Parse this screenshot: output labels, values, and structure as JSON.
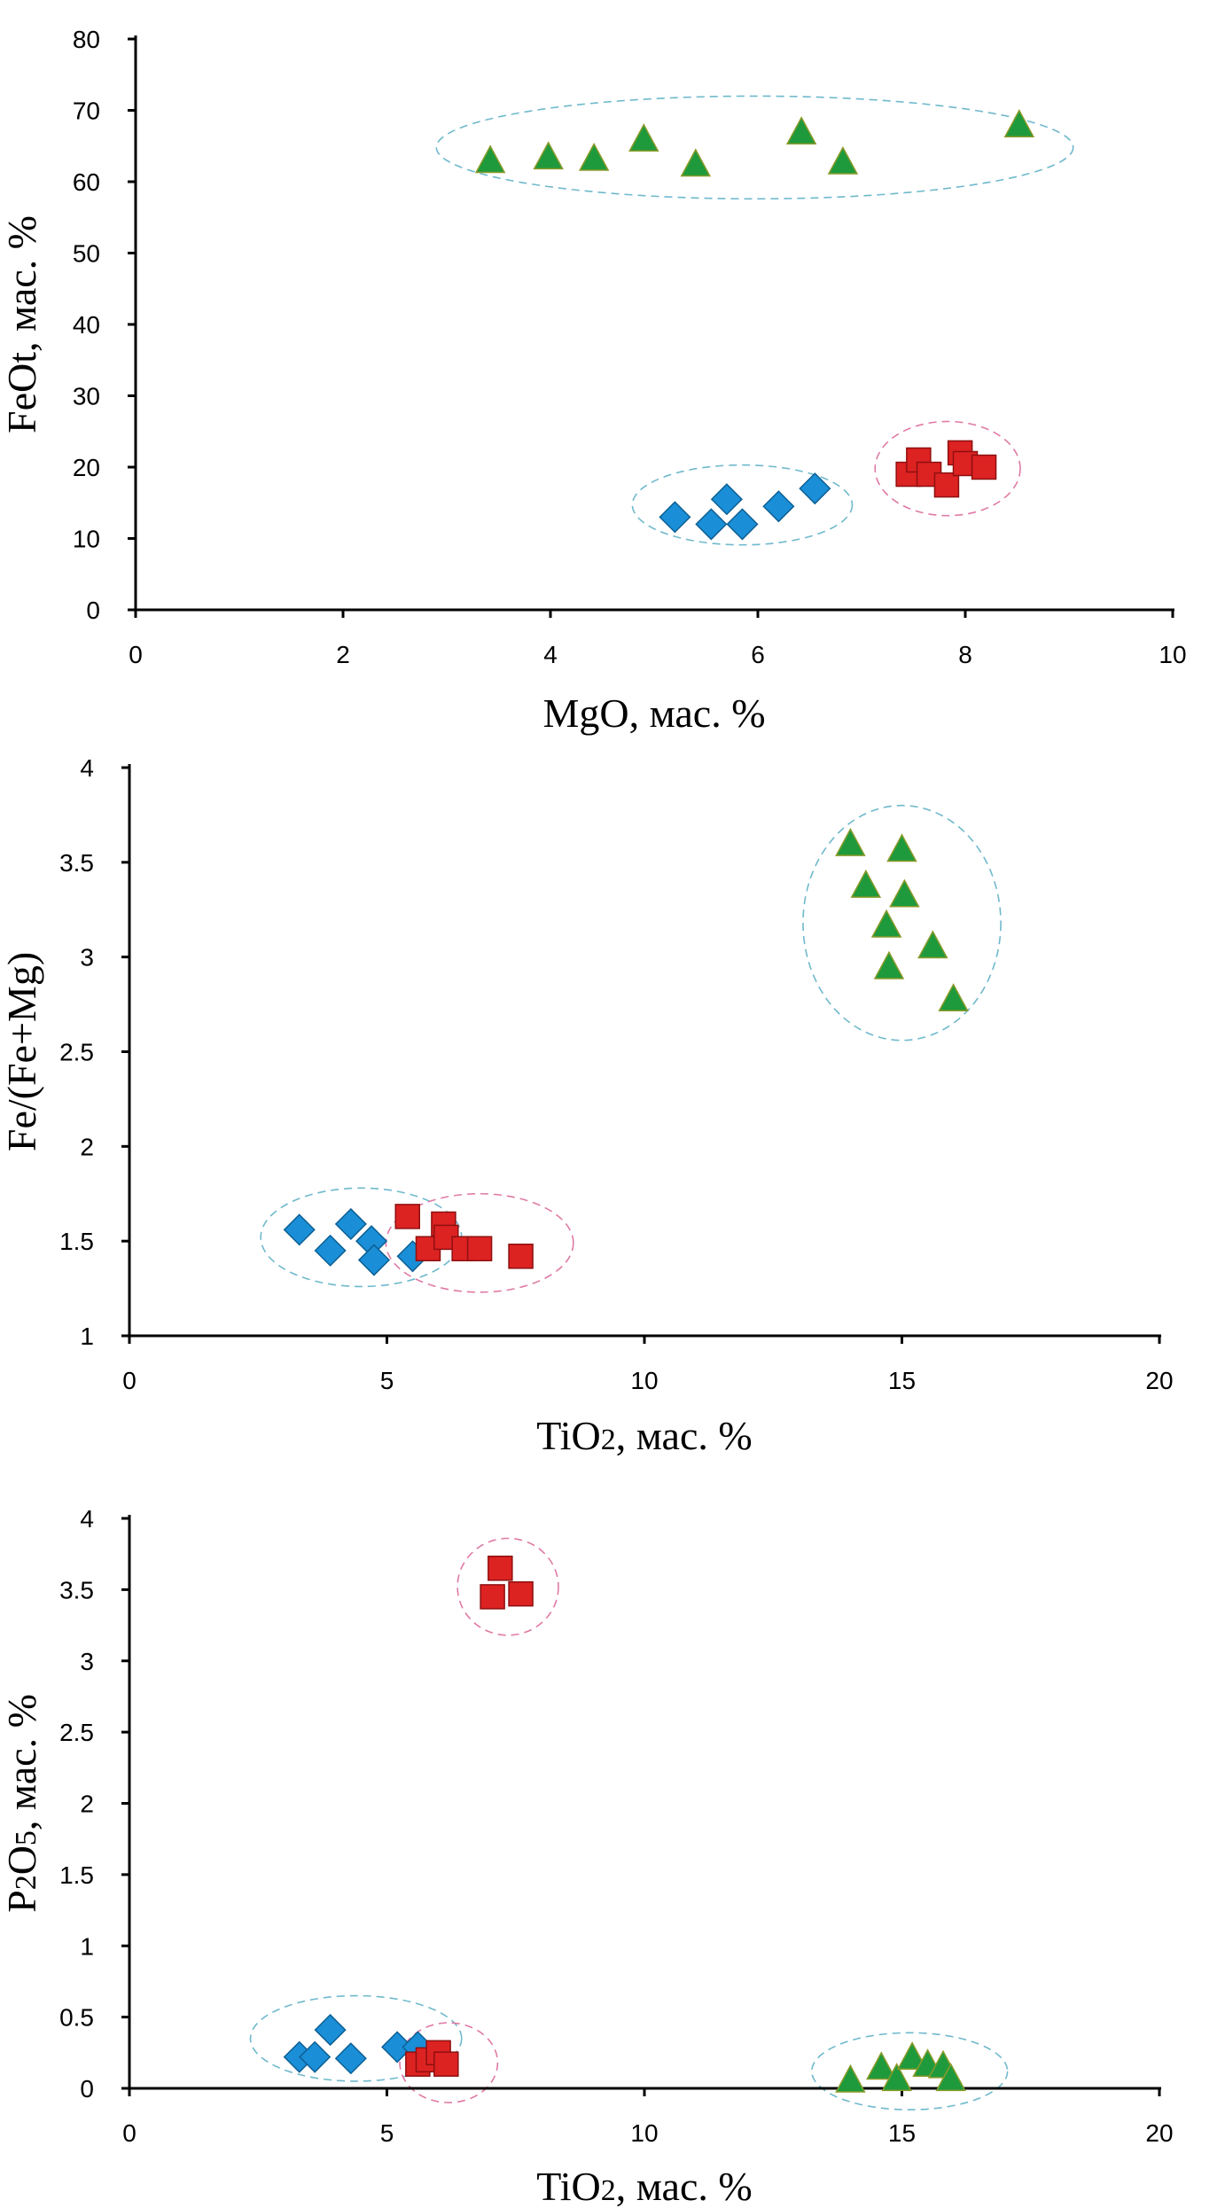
{
  "colors": {
    "diamond": "#1a8fd8",
    "square": "#dd2222",
    "triangle": "#1e9a3c",
    "hull_blue": "#6fb9cc",
    "hull_pink": "#e07aa6"
  },
  "chart_data": [
    {
      "type": "scatter",
      "xlabel": "MgO, мас. %",
      "ylabel": "FeOt, мас. %",
      "xlim": [
        0,
        10
      ],
      "ylim": [
        0,
        80
      ],
      "xticks": [
        "0",
        "2",
        "4",
        "6",
        "8",
        "10"
      ],
      "yticks": [
        "0",
        "10",
        "20",
        "30",
        "40",
        "50",
        "60",
        "70",
        "80"
      ],
      "grid": false,
      "series": [
        {
          "marker": "diamond",
          "color": "#1a8fd8",
          "points": [
            [
              5.2,
              13
            ],
            [
              5.55,
              12
            ],
            [
              5.7,
              15.5
            ],
            [
              5.85,
              12
            ],
            [
              6.2,
              14.5
            ],
            [
              6.55,
              17
            ]
          ]
        },
        {
          "marker": "square",
          "color": "#dd2222",
          "points": [
            [
              7.45,
              19
            ],
            [
              7.55,
              21
            ],
            [
              7.65,
              19
            ],
            [
              7.82,
              17.5
            ],
            [
              7.95,
              22
            ],
            [
              8.0,
              20.5
            ],
            [
              8.18,
              20
            ]
          ]
        },
        {
          "marker": "triangle",
          "color": "#1e9a3c",
          "points": [
            [
              3.42,
              63
            ],
            [
              3.98,
              63.5
            ],
            [
              4.42,
              63.3
            ],
            [
              4.9,
              66
            ],
            [
              5.4,
              62.5
            ],
            [
              6.42,
              67
            ],
            [
              6.82,
              62.8
            ],
            [
              8.52,
              68
            ]
          ]
        }
      ],
      "outlines": [
        {
          "color": "#6fb9cc",
          "cx": 5.85,
          "cy": 14.7,
          "rx": 1.06,
          "ry": 5.6
        },
        {
          "color": "#e07aa6",
          "cx": 7.83,
          "cy": 19.8,
          "rx": 0.7,
          "ry": 6.6
        },
        {
          "color": "#6fb9cc",
          "cx": 5.97,
          "cy": 64.8,
          "rx": 3.07,
          "ry": 7.2
        }
      ]
    },
    {
      "type": "scatter",
      "xlabel": "TiO2, мас. %",
      "ylabel": "Fe/(Fe+Mg)",
      "xlim": [
        0,
        20
      ],
      "ylim": [
        1,
        4
      ],
      "xticks": [
        "0",
        "5",
        "10",
        "15",
        "20"
      ],
      "yticks": [
        "1",
        "1.5",
        "2",
        "2.5",
        "3",
        "3.5",
        "4"
      ],
      "grid": false,
      "series": [
        {
          "marker": "diamond",
          "color": "#1a8fd8",
          "points": [
            [
              3.3,
              1.56
            ],
            [
              3.9,
              1.45
            ],
            [
              4.3,
              1.59
            ],
            [
              4.7,
              1.5
            ],
            [
              4.75,
              1.4
            ],
            [
              5.5,
              1.42
            ]
          ]
        },
        {
          "marker": "square",
          "color": "#dd2222",
          "points": [
            [
              5.4,
              1.63
            ],
            [
              5.8,
              1.46
            ],
            [
              6.1,
              1.59
            ],
            [
              6.15,
              1.52
            ],
            [
              6.5,
              1.46
            ],
            [
              6.8,
              1.46
            ],
            [
              7.6,
              1.42
            ]
          ]
        },
        {
          "marker": "triangle",
          "color": "#1e9a3c",
          "points": [
            [
              14.0,
              3.6
            ],
            [
              14.3,
              3.38
            ],
            [
              14.7,
              3.17
            ],
            [
              14.75,
              2.95
            ],
            [
              15.0,
              3.57
            ],
            [
              15.05,
              3.33
            ],
            [
              15.6,
              3.06
            ],
            [
              16.0,
              2.78
            ]
          ]
        }
      ],
      "outlines": [
        {
          "color": "#6fb9cc",
          "cx": 4.5,
          "cy": 1.52,
          "rx": 1.95,
          "ry": 0.26
        },
        {
          "color": "#e07aa6",
          "cx": 6.8,
          "cy": 1.49,
          "rx": 1.82,
          "ry": 0.26
        },
        {
          "color": "#6fb9cc",
          "cx": 15.0,
          "cy": 3.18,
          "rx": 1.92,
          "ry": 0.62
        }
      ]
    },
    {
      "type": "scatter",
      "xlabel": "TiO2, мас. %",
      "ylabel": "P2O5, мас. %",
      "xlim": [
        0,
        20
      ],
      "ylim": [
        0,
        4
      ],
      "xticks": [
        "0",
        "5",
        "10",
        "15",
        "20"
      ],
      "yticks": [
        "0",
        "0.5",
        "1",
        "1.5",
        "2",
        "2.5",
        "3",
        "3.5",
        "4"
      ],
      "grid": false,
      "series": [
        {
          "marker": "diamond",
          "color": "#1a8fd8",
          "points": [
            [
              3.3,
              0.22
            ],
            [
              3.6,
              0.22
            ],
            [
              3.9,
              0.41
            ],
            [
              4.3,
              0.21
            ],
            [
              5.2,
              0.29
            ],
            [
              5.6,
              0.29
            ]
          ]
        },
        {
          "marker": "square",
          "color": "#dd2222",
          "points": [
            [
              5.6,
              0.17
            ],
            [
              5.8,
              0.2
            ],
            [
              6.0,
              0.25
            ],
            [
              6.15,
              0.17
            ],
            [
              7.05,
              3.45
            ],
            [
              7.2,
              3.65
            ],
            [
              7.6,
              3.47
            ]
          ]
        },
        {
          "marker": "triangle",
          "color": "#1e9a3c",
          "points": [
            [
              14.0,
              0.06
            ],
            [
              14.6,
              0.15
            ],
            [
              14.9,
              0.07
            ],
            [
              15.2,
              0.22
            ],
            [
              15.5,
              0.17
            ],
            [
              15.8,
              0.16
            ],
            [
              15.95,
              0.07
            ]
          ]
        }
      ],
      "outlines": [
        {
          "color": "#6fb9cc",
          "cx": 4.4,
          "cy": 0.35,
          "rx": 2.05,
          "ry": 0.3
        },
        {
          "color": "#e07aa6",
          "cx": 6.2,
          "cy": 0.18,
          "rx": 0.95,
          "ry": 0.28
        },
        {
          "color": "#e07aa6",
          "cx": 7.35,
          "cy": 3.52,
          "rx": 0.98,
          "ry": 0.34
        },
        {
          "color": "#6fb9cc",
          "cx": 15.15,
          "cy": 0.12,
          "rx": 1.9,
          "ry": 0.27
        }
      ]
    }
  ]
}
